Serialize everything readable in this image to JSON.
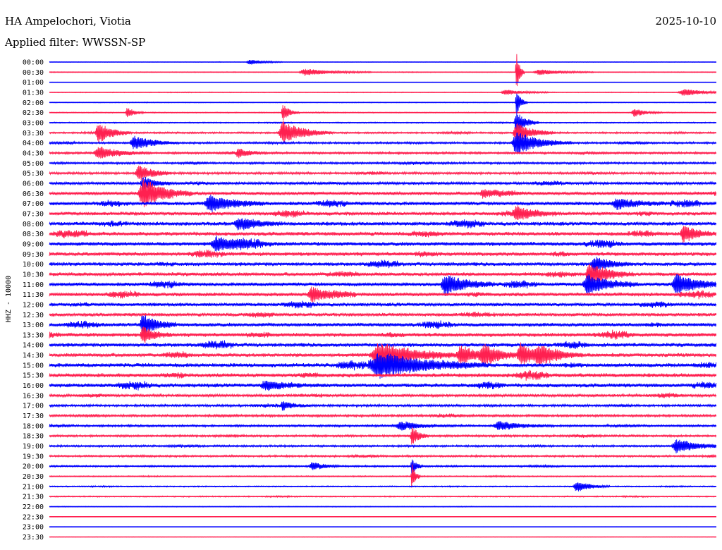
{
  "header": {
    "station": "HA Ampelochori, Viotia",
    "date": "2025-10-10",
    "filter": "Applied filter: WWSSN-SP"
  },
  "colors": {
    "trace_a": "#0000ff",
    "trace_b": "#ff2050",
    "background": "#ffffff",
    "text": "#000000"
  },
  "chart_data": {
    "type": "line",
    "ylabel": "HHZ - 10000",
    "rows_per_day": 48,
    "row_interval_minutes": 30,
    "grid": false,
    "tick_labels": [
      "00:00",
      "00:30",
      "01:00",
      "01:30",
      "02:00",
      "02:30",
      "03:00",
      "03:30",
      "04:00",
      "04:30",
      "05:00",
      "05:30",
      "06:00",
      "06:30",
      "07:00",
      "07:30",
      "08:00",
      "08:30",
      "09:00",
      "09:30",
      "10:00",
      "10:30",
      "11:00",
      "11:30",
      "12:00",
      "12:30",
      "13:00",
      "13:30",
      "14:00",
      "14:30",
      "15:00",
      "15:30",
      "16:00",
      "16:30",
      "17:00",
      "17:30",
      "18:00",
      "18:30",
      "19:00",
      "19:30",
      "20:00",
      "20:30",
      "21:00",
      "21:30",
      "22:00",
      "22:30",
      "23:00",
      "23:30"
    ],
    "series": [
      {
        "color": "#0000ff",
        "rows": "even"
      },
      {
        "color": "#ff2050",
        "rows": "odd"
      }
    ],
    "row_noise_level": [
      0.15,
      0.2,
      0.1,
      0.2,
      0.2,
      0.25,
      0.3,
      0.45,
      0.5,
      0.55,
      0.55,
      0.6,
      0.7,
      0.85,
      0.95,
      0.95,
      1.0,
      1.0,
      1.0,
      1.0,
      0.95,
      0.95,
      0.95,
      0.95,
      0.9,
      0.9,
      0.95,
      1.0,
      1.0,
      1.0,
      1.05,
      1.05,
      1.0,
      0.7,
      0.6,
      0.6,
      0.55,
      0.55,
      0.5,
      0.5,
      0.45,
      0.3,
      0.3,
      0.3,
      0.2,
      0.1,
      0.1,
      0.1
    ],
    "events": [
      {
        "row": 0,
        "minute": 9.0,
        "amp": 4,
        "dur": 0.6
      },
      {
        "row": 1,
        "minute": 11.5,
        "amp": 5,
        "dur": 1.2
      },
      {
        "row": 1,
        "minute": 22.0,
        "amp": 4,
        "dur": 1.0
      },
      {
        "row": 1,
        "minute": 21.0,
        "amp": 30,
        "dur": 0.15
      },
      {
        "row": 3,
        "minute": 20.5,
        "amp": 4,
        "dur": 0.8
      },
      {
        "row": 3,
        "minute": 28.5,
        "amp": 5,
        "dur": 1.0
      },
      {
        "row": 4,
        "minute": 21.0,
        "amp": 18,
        "dur": 0.2
      },
      {
        "row": 5,
        "minute": 3.5,
        "amp": 8,
        "dur": 0.3
      },
      {
        "row": 5,
        "minute": 10.5,
        "amp": 12,
        "dur": 0.3
      },
      {
        "row": 5,
        "minute": 26.3,
        "amp": 6,
        "dur": 0.5
      },
      {
        "row": 6,
        "minute": 21.0,
        "amp": 16,
        "dur": 0.4
      },
      {
        "row": 7,
        "minute": 2.2,
        "amp": 14,
        "dur": 0.6
      },
      {
        "row": 7,
        "minute": 10.5,
        "amp": 16,
        "dur": 0.9
      },
      {
        "row": 7,
        "minute": 21.0,
        "amp": 14,
        "dur": 0.7
      },
      {
        "row": 8,
        "minute": 3.8,
        "amp": 10,
        "dur": 0.8
      },
      {
        "row": 8,
        "minute": 21.0,
        "amp": 16,
        "dur": 1.0
      },
      {
        "row": 9,
        "minute": 2.2,
        "amp": 9,
        "dur": 0.9
      },
      {
        "row": 9,
        "minute": 8.5,
        "amp": 6,
        "dur": 0.5
      },
      {
        "row": 11,
        "minute": 4.0,
        "amp": 12,
        "dur": 0.6
      },
      {
        "row": 12,
        "minute": 4.2,
        "amp": 10,
        "dur": 0.5
      },
      {
        "row": 13,
        "minute": 4.2,
        "amp": 18,
        "dur": 0.9
      },
      {
        "row": 13,
        "minute": 19.5,
        "amp": 6,
        "dur": 0.6
      },
      {
        "row": 14,
        "minute": 7.2,
        "amp": 12,
        "dur": 1.0
      },
      {
        "row": 14,
        "minute": 25.5,
        "amp": 7,
        "dur": 0.9
      },
      {
        "row": 15,
        "minute": 21.0,
        "amp": 10,
        "dur": 0.8
      },
      {
        "row": 16,
        "minute": 8.5,
        "amp": 8,
        "dur": 0.8
      },
      {
        "row": 17,
        "minute": 28.5,
        "amp": 12,
        "dur": 0.6
      },
      {
        "row": 18,
        "minute": 7.5,
        "amp": 10,
        "dur": 1.0
      },
      {
        "row": 20,
        "minute": 24.5,
        "amp": 10,
        "dur": 0.7
      },
      {
        "row": 21,
        "minute": 24.3,
        "amp": 16,
        "dur": 0.8
      },
      {
        "row": 22,
        "minute": 17.8,
        "amp": 14,
        "dur": 0.9
      },
      {
        "row": 22,
        "minute": 24.2,
        "amp": 14,
        "dur": 0.9
      },
      {
        "row": 22,
        "minute": 28.2,
        "amp": 14,
        "dur": 0.9
      },
      {
        "row": 23,
        "minute": 11.8,
        "amp": 10,
        "dur": 0.8
      },
      {
        "row": 26,
        "minute": 4.2,
        "amp": 14,
        "dur": 0.6
      },
      {
        "row": 27,
        "minute": 4.2,
        "amp": 12,
        "dur": 0.5
      },
      {
        "row": 29,
        "minute": 14.8,
        "amp": 16,
        "dur": 1.6
      },
      {
        "row": 29,
        "minute": 18.5,
        "amp": 12,
        "dur": 0.8
      },
      {
        "row": 29,
        "minute": 19.5,
        "amp": 12,
        "dur": 0.8
      },
      {
        "row": 29,
        "minute": 21.2,
        "amp": 14,
        "dur": 0.8
      },
      {
        "row": 29,
        "minute": 22.0,
        "amp": 12,
        "dur": 0.8
      },
      {
        "row": 30,
        "minute": 14.8,
        "amp": 18,
        "dur": 2.0
      },
      {
        "row": 32,
        "minute": 9.7,
        "amp": 6,
        "dur": 1.0
      },
      {
        "row": 34,
        "minute": 10.5,
        "amp": 6,
        "dur": 0.5
      },
      {
        "row": 36,
        "minute": 15.8,
        "amp": 5,
        "dur": 1.0
      },
      {
        "row": 36,
        "minute": 20.2,
        "amp": 6,
        "dur": 1.0
      },
      {
        "row": 37,
        "minute": 16.3,
        "amp": 14,
        "dur": 0.3
      },
      {
        "row": 38,
        "minute": 28.2,
        "amp": 10,
        "dur": 0.9
      },
      {
        "row": 40,
        "minute": 11.8,
        "amp": 5,
        "dur": 0.5
      },
      {
        "row": 40,
        "minute": 16.3,
        "amp": 12,
        "dur": 0.2
      },
      {
        "row": 41,
        "minute": 16.3,
        "amp": 20,
        "dur": 0.15
      },
      {
        "row": 42,
        "minute": 23.7,
        "amp": 8,
        "dur": 0.6
      }
    ]
  }
}
